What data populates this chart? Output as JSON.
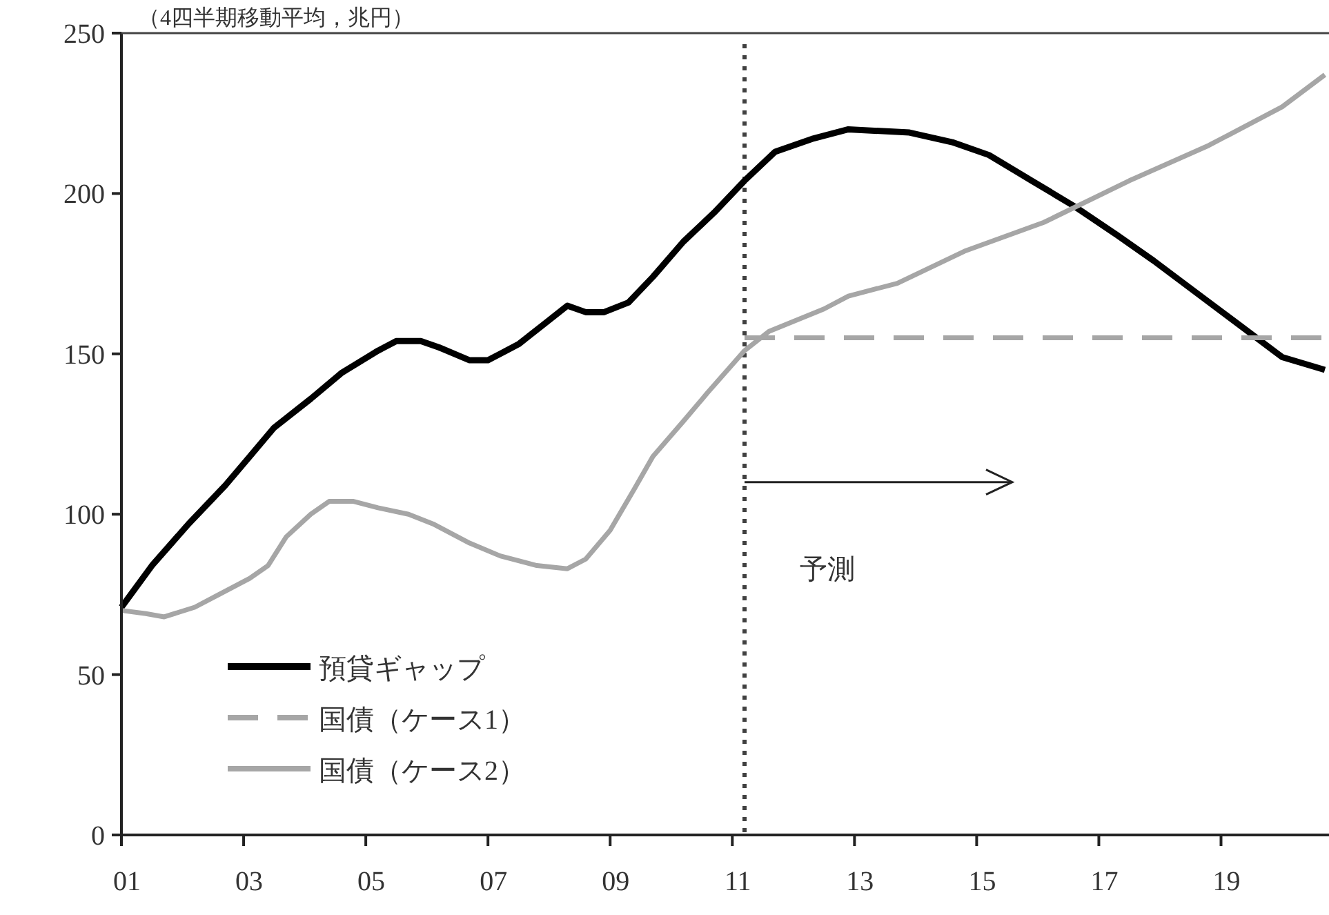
{
  "chart_data": {
    "type": "line",
    "title": "（4四半期移動平均，兆円）",
    "xlim": [
      2001,
      2020.7
    ],
    "ylim": [
      0,
      250
    ],
    "xticks": [
      {
        "value": 2001,
        "label": "01"
      },
      {
        "value": 2003,
        "label": "03"
      },
      {
        "value": 2005,
        "label": "05"
      },
      {
        "value": 2007,
        "label": "07"
      },
      {
        "value": 2009,
        "label": "09"
      },
      {
        "value": 2011,
        "label": "11"
      },
      {
        "value": 2013,
        "label": "13"
      },
      {
        "value": 2015,
        "label": "15"
      },
      {
        "value": 2017,
        "label": "17"
      },
      {
        "value": 2019,
        "label": "19"
      }
    ],
    "yticks": [
      0,
      50,
      100,
      150,
      200,
      250
    ],
    "series": [
      {
        "name": "預貸ギャップ",
        "color": "#000000",
        "line_style": "solid",
        "x": [
          2001.0,
          2001.5,
          2002.1,
          2002.7,
          2003.1,
          2003.5,
          2004.1,
          2004.6,
          2005.2,
          2005.5,
          2005.9,
          2006.2,
          2006.7,
          2007.0,
          2007.5,
          2007.9,
          2008.3,
          2008.6,
          2008.9,
          2009.3,
          2009.7,
          2010.2,
          2010.7,
          2011.2,
          2011.7,
          2012.3,
          2012.9,
          2013.9,
          2014.6,
          2015.2,
          2015.9,
          2016.6,
          2017.3,
          2017.9,
          2018.6,
          2019.3,
          2020.0,
          2020.7
        ],
        "values": [
          71,
          84,
          97,
          109,
          118,
          127,
          136,
          144,
          151,
          154,
          154,
          152,
          148,
          148,
          153,
          159,
          165,
          163,
          163,
          166,
          174,
          185,
          194,
          204,
          213,
          217,
          220,
          219,
          216,
          212,
          204,
          196,
          187,
          179,
          169,
          159,
          149,
          145
        ]
      },
      {
        "name": "国債（ケース1）",
        "color": "#a6a6a6",
        "line_style": "dashed",
        "x": [
          2011.2,
          2020.7
        ],
        "values": [
          155,
          155
        ]
      },
      {
        "name": "国債（ケース2）",
        "color": "#a6a6a6",
        "line_style": "solid",
        "x": [
          2001.0,
          2001.4,
          2001.7,
          2002.2,
          2002.6,
          2003.1,
          2003.4,
          2003.7,
          2004.1,
          2004.4,
          2004.8,
          2005.2,
          2005.7,
          2006.1,
          2006.7,
          2007.2,
          2007.8,
          2008.3,
          2008.6,
          2009.0,
          2009.4,
          2009.7,
          2010.2,
          2010.6,
          2011.2,
          2011.6,
          2012.5,
          2012.9,
          2013.7,
          2014.8,
          2016.1,
          2017.5,
          2018.8,
          2020.0,
          2020.7
        ],
        "values": [
          70,
          69,
          68,
          71,
          75,
          80,
          84,
          93,
          100,
          104,
          104,
          102,
          100,
          97,
          91,
          87,
          84,
          83,
          86,
          95,
          108,
          118,
          129,
          138,
          151,
          157,
          164,
          168,
          172,
          182,
          191,
          204,
          215,
          227,
          237
        ]
      }
    ],
    "ref_lines": [
      {
        "axis": "x",
        "value": 2011.2,
        "color": "#404040",
        "line_style": "dotted"
      }
    ],
    "annotations": [
      "予測"
    ],
    "legend": "bottom left"
  }
}
